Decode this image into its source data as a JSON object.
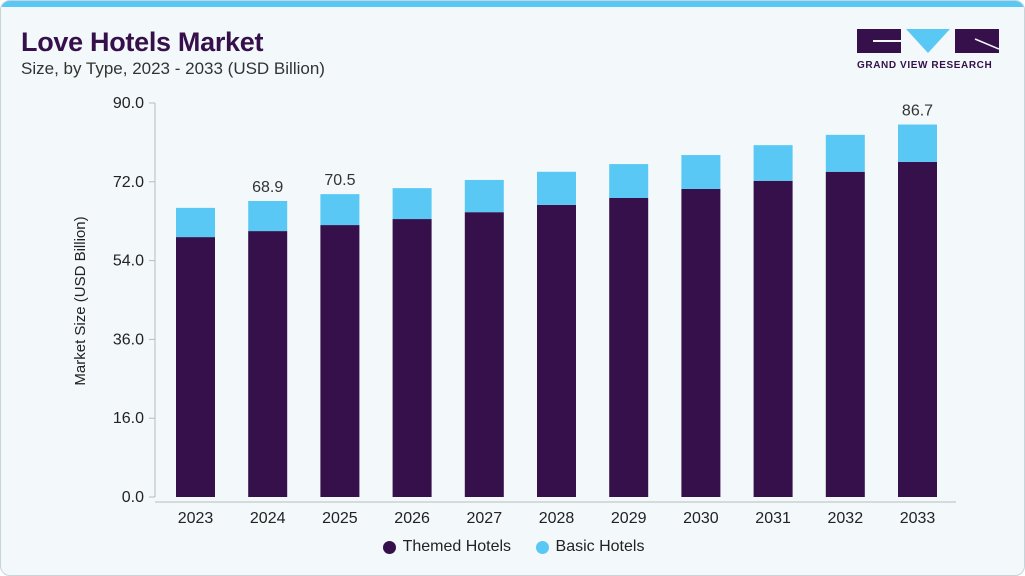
{
  "title": "Love Hotels Market",
  "subtitle": "Size, by Type, 2023 - 2033 (USD Billion)",
  "logo_text": "GRAND VIEW RESEARCH",
  "chart_data": {
    "type": "bar",
    "stacked": true,
    "categories": [
      "2023",
      "2024",
      "2025",
      "2026",
      "2027",
      "2028",
      "2029",
      "2030",
      "2031",
      "2032",
      "2033"
    ],
    "series": [
      {
        "name": "Themed Hotels",
        "color": "#35104a",
        "values": [
          60.5,
          61.9,
          63.3,
          64.7,
          66.3,
          68.0,
          69.6,
          71.7,
          73.6,
          75.7,
          78.0
        ]
      },
      {
        "name": "Basic Hotels",
        "color": "#5ac8f5",
        "values": [
          6.8,
          7.0,
          7.2,
          7.2,
          7.5,
          7.7,
          7.9,
          7.9,
          8.3,
          8.6,
          8.7
        ]
      }
    ],
    "data_labels": {
      "2024": "68.9",
      "2025": "70.5",
      "2033": "86.7"
    },
    "ylabel": "Market Size (USD Billion)",
    "xlabel": "",
    "yticks": [
      "0.0",
      "16.0",
      "36.0",
      "54.0",
      "72.0",
      "90.0"
    ],
    "ylim": [
      0,
      90
    ],
    "grid": false,
    "legend": "bottom"
  }
}
